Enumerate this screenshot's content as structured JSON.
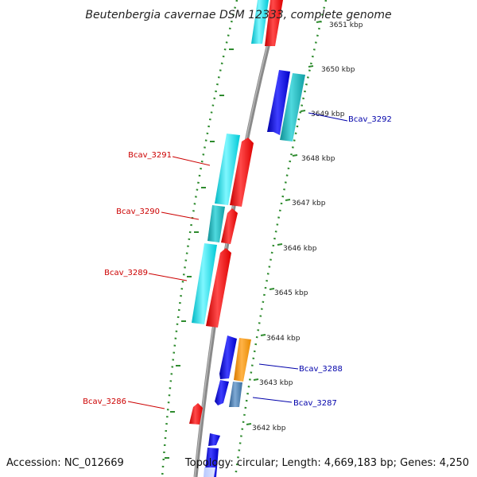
{
  "title": "Beutenbergia cavernae DSM 12333, complete genome",
  "footer": {
    "accession": "Accession: NC_012669",
    "summary": "Topology: circular; Length: 4,669,183 bp; Genes: 4,250"
  },
  "colors": {
    "backbone": "#888888",
    "tick": "#2e8b2e",
    "cds_cyan": "#00e5ee",
    "cds_teal": "#16b7bd",
    "cds_red": "#ff0000",
    "cds_blue": "#1010e0",
    "cds_orange": "#ff9900",
    "cds_steel": "#4682b4",
    "label_red": "#cc0000",
    "label_blue": "#0000aa"
  },
  "scale_labels": [
    "3651 kbp",
    "3650 kbp",
    "3649 kbp",
    "3648 kbp",
    "3647 kbp",
    "3646 kbp",
    "3645 kbp",
    "3644 kbp",
    "3643 kbp",
    "3642 kbp"
  ],
  "gene_labels": [
    {
      "text": "Bcav_3292",
      "strand": "plus"
    },
    {
      "text": "Bcav_3291",
      "strand": "minus"
    },
    {
      "text": "Bcav_3290",
      "strand": "minus"
    },
    {
      "text": "Bcav_3289",
      "strand": "minus"
    },
    {
      "text": "Bcav_3288",
      "strand": "plus"
    },
    {
      "text": "Bcav_3287",
      "strand": "plus"
    },
    {
      "text": "Bcav_3286",
      "strand": "minus"
    }
  ]
}
